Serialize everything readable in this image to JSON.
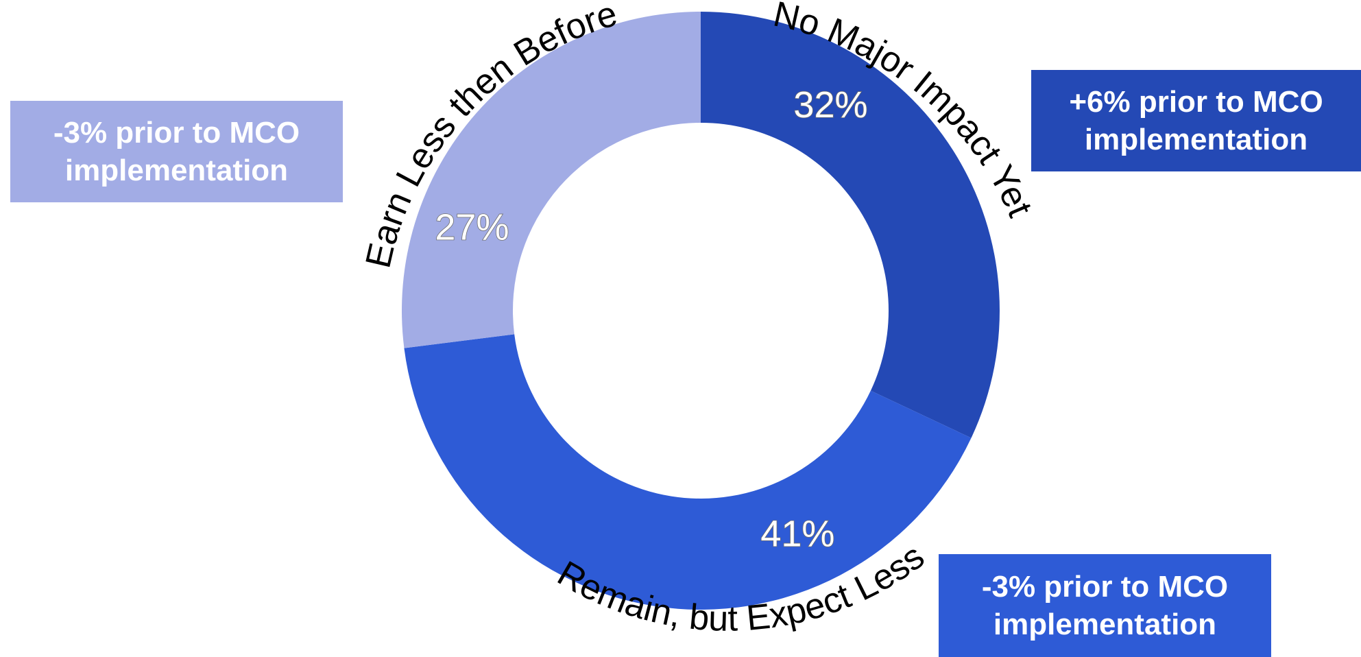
{
  "chart_data": {
    "type": "pie",
    "variant": "donut",
    "title": "",
    "categories": [
      "No Major Impact Yet",
      "Remain, but Expect Less",
      "Earn Less then Before"
    ],
    "values": [
      32,
      41,
      27
    ],
    "value_labels": [
      "32%",
      "41%",
      "27%"
    ],
    "colors": [
      "#2449b5",
      "#2e5bd6",
      "#a2ace5"
    ],
    "legend": "none",
    "annotations": [
      {
        "category": "Earn Less then Before",
        "lines": [
          "-3% prior to MCO",
          "implementation"
        ],
        "color": "#a2ace5"
      },
      {
        "category": "No Major Impact Yet",
        "lines": [
          "+6% prior to MCO",
          "implementation"
        ],
        "color": "#2449b5"
      },
      {
        "category": "Remain, but Expect Less",
        "lines": [
          "-3% prior to MCO",
          "implementation"
        ],
        "color": "#2e5bd6"
      }
    ]
  }
}
